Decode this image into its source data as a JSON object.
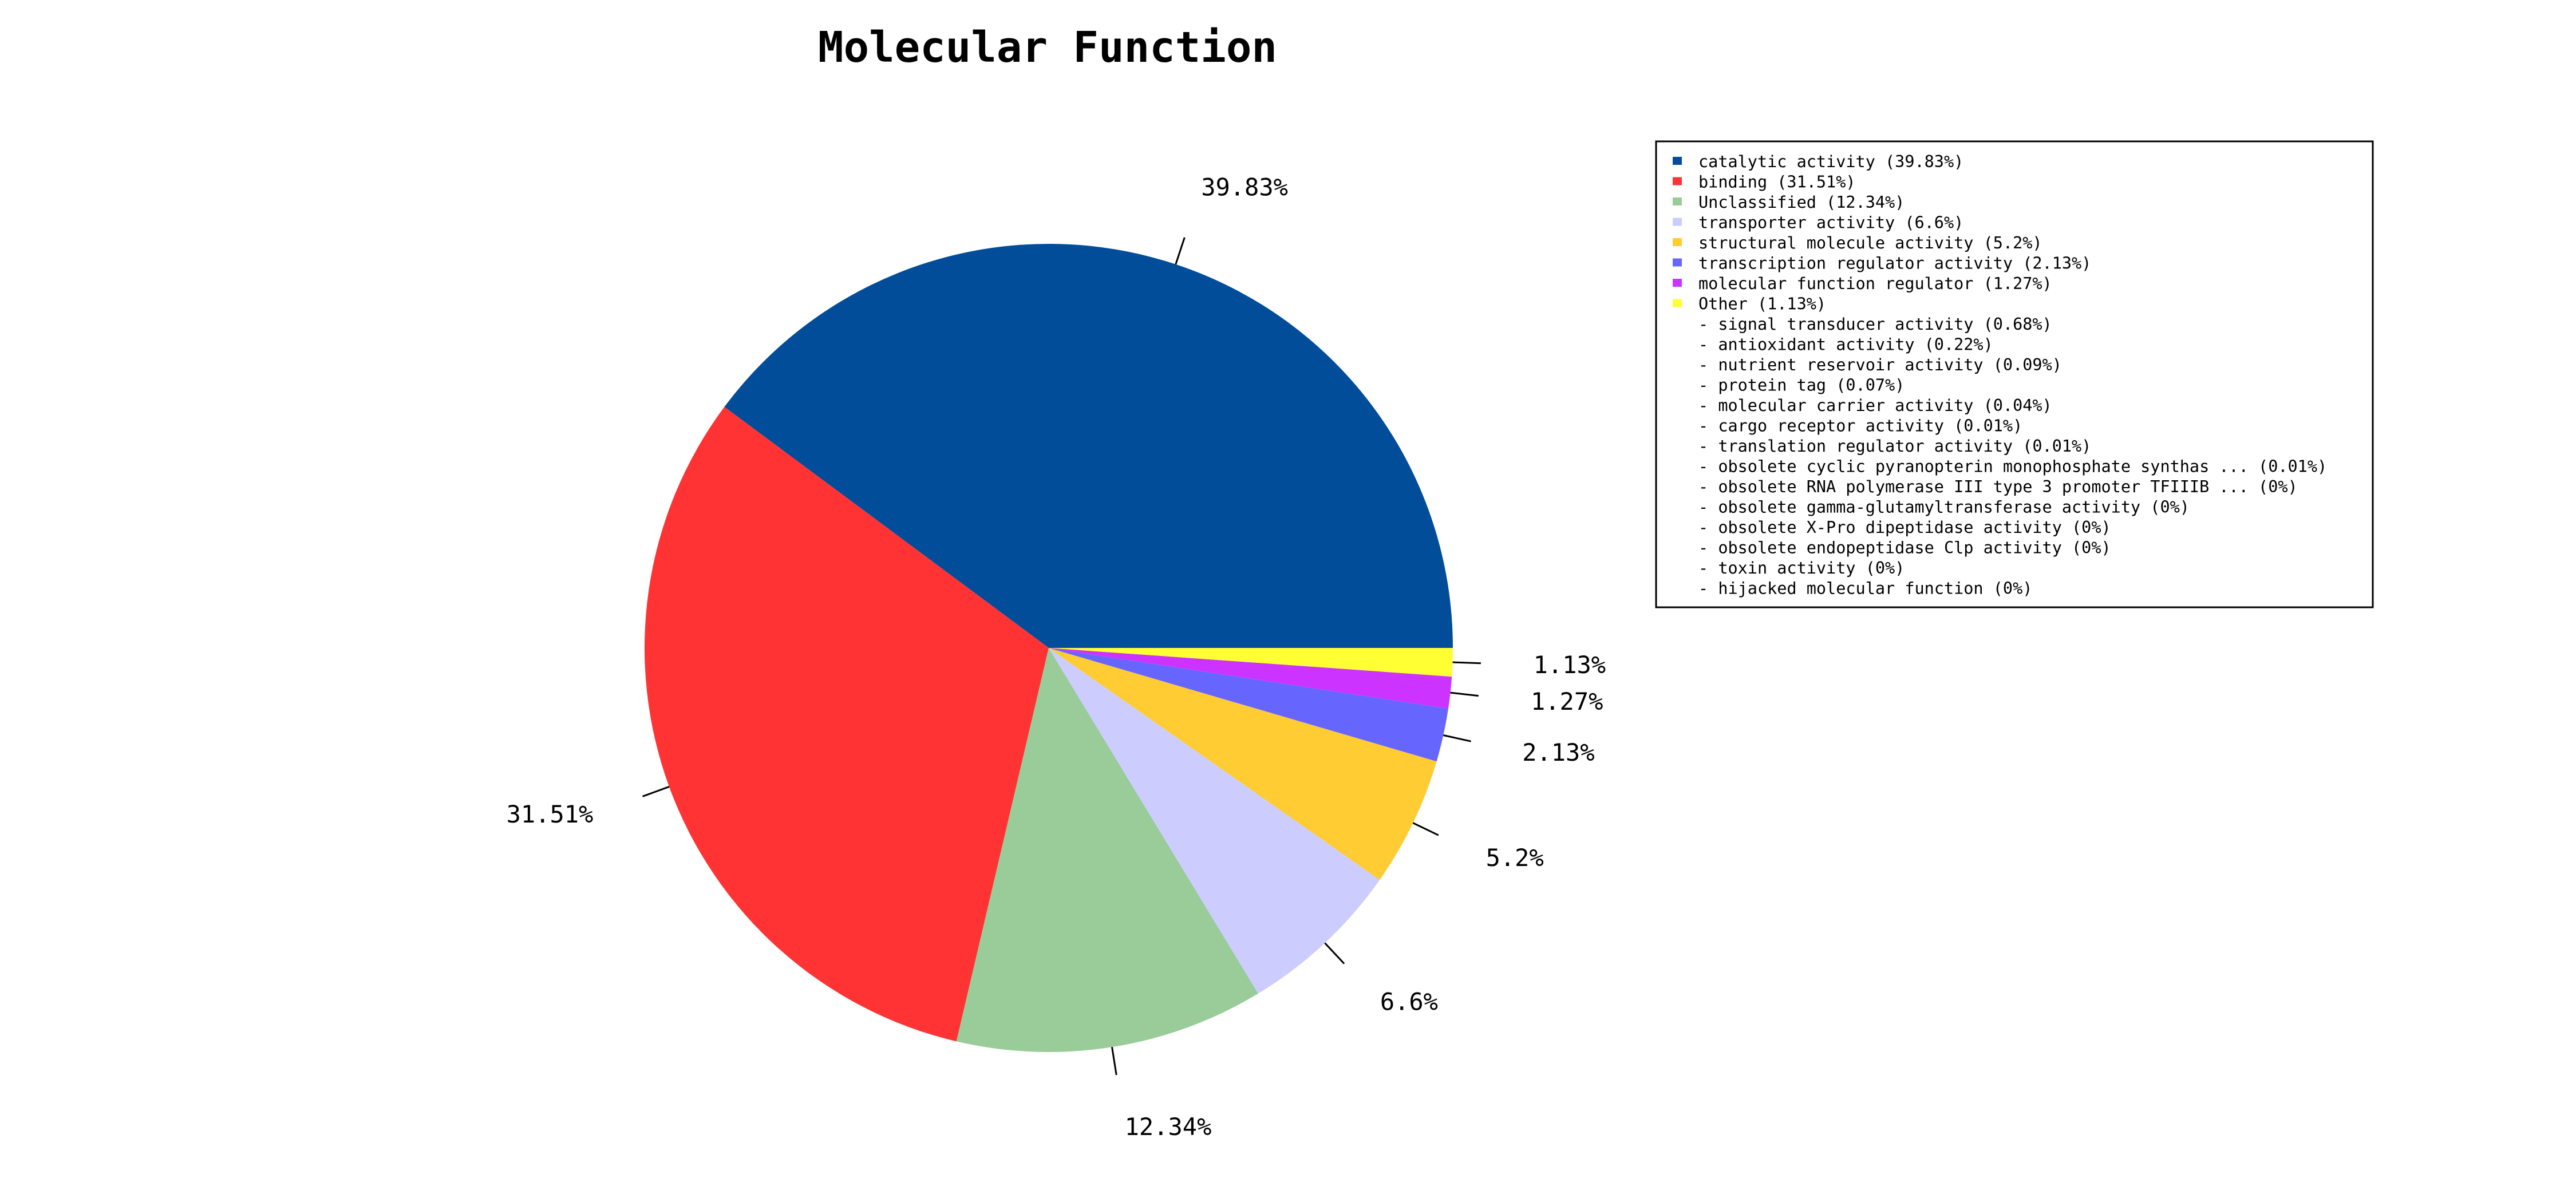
{
  "chart_data": {
    "type": "pie",
    "title": "Molecular Function",
    "slices": [
      {
        "label": "catalytic activity (39.83%)",
        "value": 39.83,
        "pct_label": "39.83%",
        "color": "#024d99"
      },
      {
        "label": "binding (31.51%)",
        "value": 31.51,
        "pct_label": "31.51%",
        "color": "#ff3333"
      },
      {
        "label": "Unclassified (12.34%)",
        "value": 12.34,
        "pct_label": "12.34%",
        "color": "#99cc99"
      },
      {
        "label": "transporter activity (6.6%)",
        "value": 6.6,
        "pct_label": "6.6%",
        "color": "#ccccff"
      },
      {
        "label": "structural molecule activity (5.2%)",
        "value": 5.2,
        "pct_label": "5.2%",
        "color": "#ffcc33"
      },
      {
        "label": "transcription regulator activity (2.13%)",
        "value": 2.13,
        "pct_label": "2.13%",
        "color": "#6666ff"
      },
      {
        "label": "molecular function regulator (1.27%)",
        "value": 1.27,
        "pct_label": "1.27%",
        "color": "#cc33ff"
      },
      {
        "label": "Other (1.13%)",
        "value": 1.13,
        "pct_label": "1.13%",
        "color": "#ffff33"
      }
    ],
    "other_breakdown": [
      "- signal transducer activity (0.68%)",
      "- antioxidant activity (0.22%)",
      "- nutrient reservoir activity (0.09%)",
      "- protein tag (0.07%)",
      "- molecular carrier activity (0.04%)",
      "- cargo receptor activity (0.01%)",
      "- translation regulator activity (0.01%)",
      "- obsolete cyclic pyranopterin monophosphate synthas ... (0.01%)",
      "- obsolete RNA polymerase III type 3 promoter TFIIIB ... (0%)",
      "- obsolete gamma-glutamyltransferase activity (0%)",
      "- obsolete X-Pro dipeptidase activity (0%)",
      "- obsolete endopeptidase Clp activity (0%)",
      "- toxin activity (0%)",
      "- hijacked molecular function (0%)"
    ],
    "legend_position": "right",
    "start_angle": "0 degrees (3 o'clock), counter-clockwise"
  }
}
